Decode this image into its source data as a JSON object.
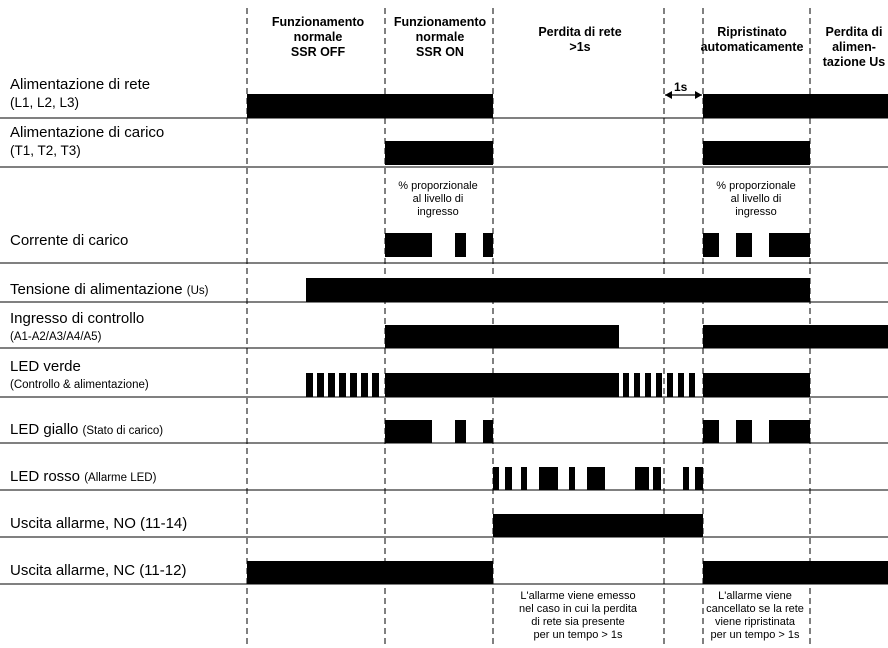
{
  "phases": [
    {
      "label": "Funzionamento\nnormale\nSSR OFF"
    },
    {
      "label": "Funzionamento\nnormale\nSSR ON"
    },
    {
      "label": "Perdita di rete\n>1s"
    },
    {
      "label": "Ripristinato\nautomaticamente"
    },
    {
      "label": "Perdita di\nalimen-\ntazione Us"
    }
  ],
  "duration_label": "1s",
  "rows": [
    {
      "label": "Alimentazione di rete",
      "sub": "(L1, L2, L3)",
      "sub_small": false
    },
    {
      "label": "Alimentazione di carico",
      "sub": "(T1, T2, T3)",
      "sub_small": false
    },
    {
      "label": "Corrente di carico"
    },
    {
      "label": "Tensione di alimentazione",
      "small": "(Us)"
    },
    {
      "label": "Ingresso di controllo",
      "sub": "(A1-A2/A3/A4/A5)",
      "sub_small": true
    },
    {
      "label": "LED verde",
      "sub": "(Controllo & alimentazione)",
      "sub_small": true
    },
    {
      "label": "LED giallo",
      "small": "(Stato di carico)"
    },
    {
      "label": "LED rosso",
      "small": "(Allarme LED)"
    },
    {
      "label": "Uscita allarme, NO (11-14)"
    },
    {
      "label": "Uscita allarme, NC (11-12)"
    }
  ],
  "notes": {
    "current_on": "% proporzionale\nal livello di\ningresso",
    "current_restored": "% proporzionale\nal livello di\ningresso",
    "alarm_issued": "L'allarme viene emesso\nnel caso in cui la perdita\ndi rete sia presente\nper un tempo > 1s",
    "alarm_cleared": "L'allarme viene\ncancellato se la rete\nviene ripristinata\nper un tempo > 1s"
  }
}
